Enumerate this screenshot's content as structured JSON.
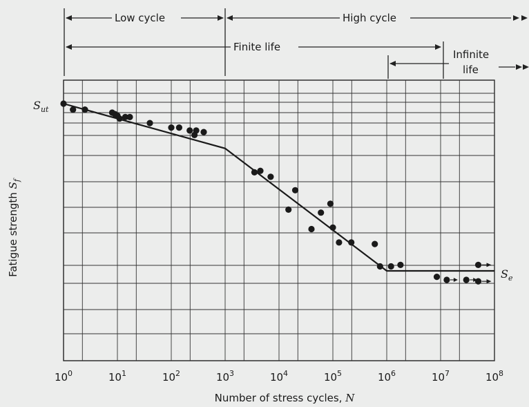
{
  "chart_data": {
    "type": "scatter",
    "xlabel": "Number of stress cycles,",
    "xlabel_var": "N",
    "ylabel": "Fatigue strength",
    "ylabel_var": "S",
    "ylabel_sub": "f",
    "x_scale": "log",
    "xlim": [
      1,
      100000000
    ],
    "x_ticks": [
      {
        "base": "10",
        "exp": "0",
        "value": 1
      },
      {
        "base": "10",
        "exp": "1",
        "value": 10
      },
      {
        "base": "10",
        "exp": "2",
        "value": 100
      },
      {
        "base": "10",
        "exp": "3",
        "value": 1000
      },
      {
        "base": "10",
        "exp": "4",
        "value": 10000
      },
      {
        "base": "10",
        "exp": "5",
        "value": 100000
      },
      {
        "base": "10",
        "exp": "6",
        "value": 1000000
      },
      {
        "base": "10",
        "exp": "7",
        "value": 10000000
      },
      {
        "base": "10",
        "exp": "8",
        "value": 100000000
      }
    ],
    "grid": true,
    "y_axis_labels": {
      "top": "S",
      "top_sub": "ut",
      "bottom": "S",
      "bottom_sub": "e"
    },
    "y_scale_note": "relative fatigue strength, 1.0 = Sut",
    "fit_curve": [
      {
        "x": 1,
        "y": 1.0
      },
      {
        "x": 1000,
        "y": 0.85
      },
      {
        "x": 1000000,
        "y": 0.44
      },
      {
        "x": 100000000,
        "y": 0.44
      }
    ],
    "points": [
      {
        "x": 1,
        "y": 1.0
      },
      {
        "x": 1.5,
        "y": 0.98
      },
      {
        "x": 2.5,
        "y": 0.98
      },
      {
        "x": 8,
        "y": 0.97
      },
      {
        "x": 9,
        "y": 0.965
      },
      {
        "x": 10,
        "y": 0.96
      },
      {
        "x": 11,
        "y": 0.95
      },
      {
        "x": 14,
        "y": 0.955
      },
      {
        "x": 17,
        "y": 0.955
      },
      {
        "x": 40,
        "y": 0.935
      },
      {
        "x": 100,
        "y": 0.92
      },
      {
        "x": 140,
        "y": 0.92
      },
      {
        "x": 220,
        "y": 0.91
      },
      {
        "x": 270,
        "y": 0.895
      },
      {
        "x": 290,
        "y": 0.91
      },
      {
        "x": 400,
        "y": 0.905
      },
      {
        "x": 3500,
        "y": 0.77
      },
      {
        "x": 4500,
        "y": 0.775
      },
      {
        "x": 7000,
        "y": 0.755
      },
      {
        "x": 15000,
        "y": 0.645
      },
      {
        "x": 20000,
        "y": 0.71
      },
      {
        "x": 40000,
        "y": 0.58
      },
      {
        "x": 60000,
        "y": 0.635
      },
      {
        "x": 90000,
        "y": 0.665
      },
      {
        "x": 100000,
        "y": 0.585
      },
      {
        "x": 130000,
        "y": 0.535
      },
      {
        "x": 220000,
        "y": 0.535
      },
      {
        "x": 600000,
        "y": 0.53
      },
      {
        "x": 750000,
        "y": 0.455
      },
      {
        "x": 1200000,
        "y": 0.455
      },
      {
        "x": 1800000,
        "y": 0.46
      },
      {
        "x": 8500000,
        "y": 0.42
      },
      {
        "x": 13000000,
        "y": 0.41
      },
      {
        "x": 30000000,
        "y": 0.41
      },
      {
        "x": 50000000,
        "y": 0.46,
        "runout": true
      },
      {
        "x": 50000000,
        "y": 0.405,
        "runout": true
      }
    ]
  },
  "regions": {
    "low_cycle": "Low cycle",
    "high_cycle": "High cycle",
    "finite_life": "Finite life",
    "infinite_life_line1": "Infinite",
    "infinite_life_line2": "life"
  }
}
